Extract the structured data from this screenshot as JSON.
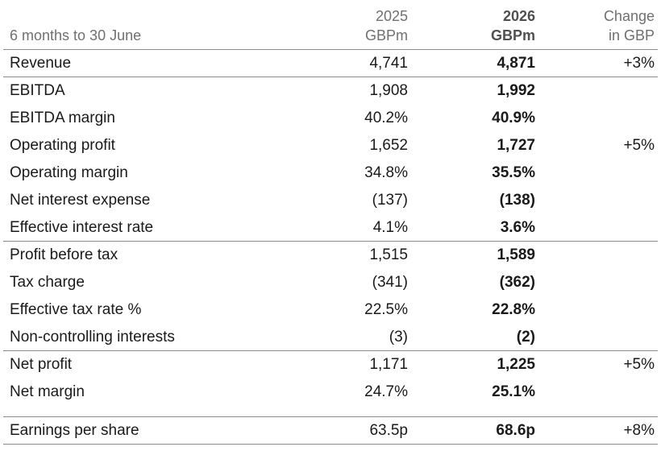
{
  "header": {
    "period": "6 months to 30 June",
    "col1_line1": "2025",
    "col1_line2": "GBPm",
    "col2_line1": "2026",
    "col2_line2": "GBPm",
    "col3_line1": "Change",
    "col3_line2": "in GBP"
  },
  "rows": [
    {
      "label": "Revenue",
      "v2025": "4,741",
      "v2026": "4,871",
      "change": "+3%"
    },
    {
      "label": "EBITDA",
      "v2025": "1,908",
      "v2026": "1,992",
      "change": ""
    },
    {
      "label": "EBITDA margin",
      "v2025": "40.2%",
      "v2026": "40.9%",
      "change": ""
    },
    {
      "label": "Operating profit",
      "v2025": "1,652",
      "v2026": "1,727",
      "change": "+5%"
    },
    {
      "label": "Operating margin",
      "v2025": "34.8%",
      "v2026": "35.5%",
      "change": ""
    },
    {
      "label": "Net interest expense",
      "v2025": "(137)",
      "v2026": "(138)",
      "change": ""
    },
    {
      "label": "Effective interest rate",
      "v2025": "4.1%",
      "v2026": "3.6%",
      "change": ""
    },
    {
      "label": "Profit before tax",
      "v2025": "1,515",
      "v2026": "1,589",
      "change": ""
    },
    {
      "label": "Tax charge",
      "v2025": "(341)",
      "v2026": "(362)",
      "change": ""
    },
    {
      "label": "Effective tax rate %",
      "v2025": "22.5%",
      "v2026": "22.8%",
      "change": ""
    },
    {
      "label": "Non-controlling interests",
      "v2025": "(3)",
      "v2026": "(2)",
      "change": ""
    },
    {
      "label": "Net profit",
      "v2025": "1,171",
      "v2026": "1,225",
      "change": "+5%"
    },
    {
      "label": "Net margin",
      "v2025": "24.7%",
      "v2026": "25.1%",
      "change": ""
    },
    {
      "label": "Earnings per share",
      "v2025": "63.5p",
      "v2026": "68.6p",
      "change": "+8%"
    }
  ]
}
